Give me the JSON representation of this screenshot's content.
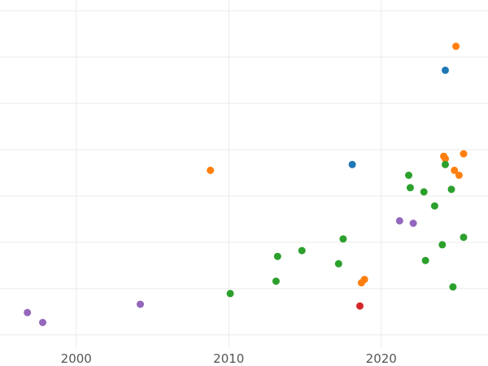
{
  "chart_data": {
    "type": "scatter",
    "title": "",
    "xlabel": "",
    "ylabel": "",
    "xlim": [
      1995,
      2027
    ],
    "ylim": [
      0,
      420
    ],
    "x_ticks": [
      2000,
      2010,
      2020
    ],
    "x_tick_labels": [
      "2000",
      "2010",
      "2020"
    ],
    "y_gridlines": [
      15,
      71,
      127,
      183,
      239,
      295,
      351,
      407
    ],
    "grid": true,
    "legend": "none",
    "series": [
      {
        "color": "#1f77b4",
        "points": [
          {
            "x": 2024.2,
            "y": 335
          },
          {
            "x": 2018.1,
            "y": 221
          }
        ]
      },
      {
        "color": "#ff7f0e",
        "points": [
          {
            "x": 2024.9,
            "y": 364
          },
          {
            "x": 2025.4,
            "y": 234
          },
          {
            "x": 2024.1,
            "y": 231
          },
          {
            "x": 2024.2,
            "y": 228
          },
          {
            "x": 2024.8,
            "y": 214
          },
          {
            "x": 2025.1,
            "y": 208
          },
          {
            "x": 2008.8,
            "y": 214
          },
          {
            "x": 2018.9,
            "y": 82
          },
          {
            "x": 2018.7,
            "y": 78
          }
        ]
      },
      {
        "color": "#2ca02c",
        "points": [
          {
            "x": 2024.2,
            "y": 221
          },
          {
            "x": 2021.8,
            "y": 208
          },
          {
            "x": 2021.9,
            "y": 193
          },
          {
            "x": 2022.8,
            "y": 188
          },
          {
            "x": 2024.6,
            "y": 191
          },
          {
            "x": 2023.5,
            "y": 171
          },
          {
            "x": 2017.5,
            "y": 131
          },
          {
            "x": 2025.4,
            "y": 133
          },
          {
            "x": 2024.0,
            "y": 124
          },
          {
            "x": 2014.8,
            "y": 117
          },
          {
            "x": 2013.2,
            "y": 110
          },
          {
            "x": 2017.2,
            "y": 101
          },
          {
            "x": 2022.9,
            "y": 105
          },
          {
            "x": 2013.1,
            "y": 80
          },
          {
            "x": 2024.7,
            "y": 73
          },
          {
            "x": 2010.1,
            "y": 65
          }
        ]
      },
      {
        "color": "#d62728",
        "points": [
          {
            "x": 2018.6,
            "y": 50
          }
        ]
      },
      {
        "color": "#9467bd",
        "points": [
          {
            "x": 2021.2,
            "y": 153
          },
          {
            "x": 2022.1,
            "y": 150
          },
          {
            "x": 2004.2,
            "y": 52
          },
          {
            "x": 1996.8,
            "y": 42
          },
          {
            "x": 1997.8,
            "y": 30
          }
        ]
      }
    ]
  }
}
